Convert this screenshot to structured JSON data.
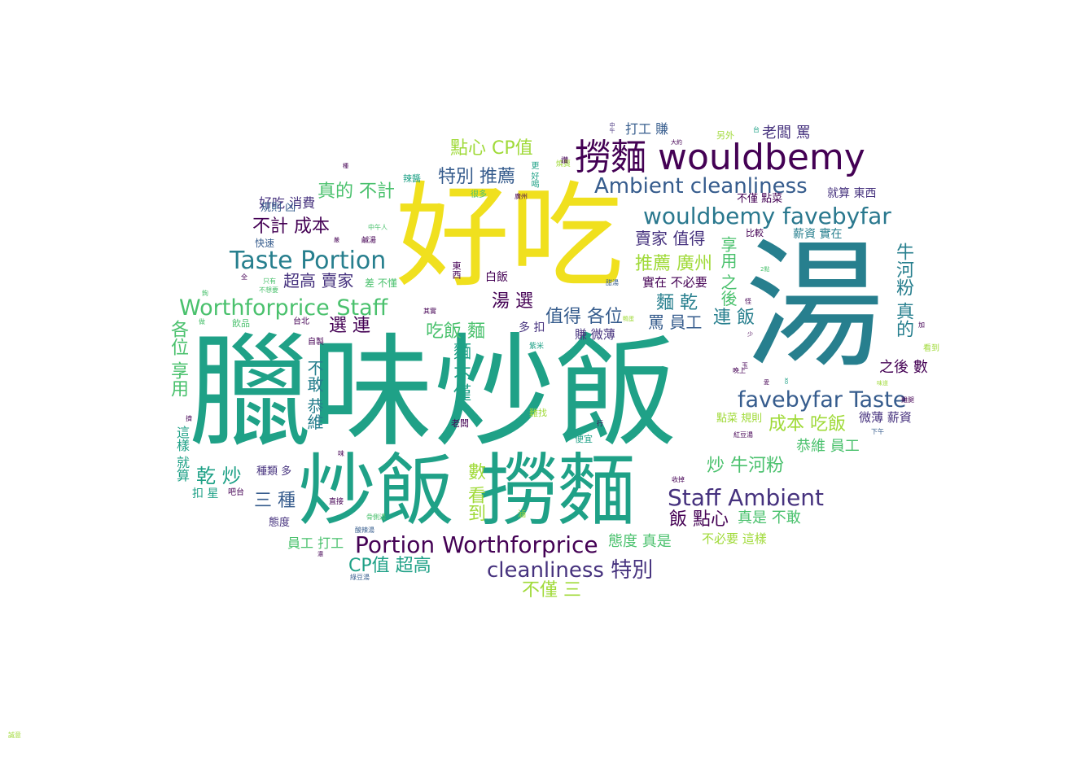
{
  "palette": {
    "yellow": "#f0e01e",
    "teal_green": "#1fa187",
    "teal": "#277f8e",
    "blue": "#365c8d",
    "navy": "#46327e",
    "purple": "#440154",
    "green": "#4ac16d",
    "lime": "#a0da39",
    "cyan": "#2a788e"
  },
  "words": [
    {
      "text": "臘味炒飯",
      "color": "#1fa187"
    },
    {
      "text": "湯",
      "color": "#277f8e"
    },
    {
      "text": "好吃",
      "color": "#f0e01e"
    },
    {
      "text": "炒飯 撈麵",
      "color": "#1fa187"
    },
    {
      "text": "撈麵 wouldbemy",
      "color": "#440154"
    },
    {
      "text": "wouldbemy favebyfar",
      "color": "#2a788e"
    },
    {
      "text": "Ambient cleanliness",
      "color": "#365c8d"
    },
    {
      "text": "Taste Portion",
      "color": "#277f8e"
    },
    {
      "text": "Worthforprice Staff",
      "color": "#4ac16d"
    },
    {
      "text": "favebyfar Taste",
      "color": "#365c8d"
    },
    {
      "text": "Staff Ambient",
      "color": "#46327e"
    },
    {
      "text": "Portion Worthforprice",
      "color": "#440154"
    },
    {
      "text": "cleanliness 特別",
      "color": "#46327e"
    },
    {
      "text": "點心 CP值",
      "color": "#a0da39"
    },
    {
      "text": "特別 推薦",
      "color": "#365c8d"
    },
    {
      "text": "真的 不計",
      "color": "#4ac16d"
    },
    {
      "text": "不計 成本",
      "color": "#440154"
    },
    {
      "text": "好吃 消費",
      "color": "#46327e"
    },
    {
      "text": "規則 凶",
      "color": "#365c8d"
    },
    {
      "text": "超高 賣家",
      "color": "#46327e"
    },
    {
      "text": "賣家 值得",
      "color": "#46327e"
    },
    {
      "text": "推薦 廣州",
      "color": "#a0da39"
    },
    {
      "text": "湯 選",
      "color": "#440154"
    },
    {
      "text": "選 連",
      "color": "#440154"
    },
    {
      "text": "麵 乾",
      "color": "#277f8e"
    },
    {
      "text": "值得 各位",
      "color": "#365c8d"
    },
    {
      "text": "罵 員工",
      "color": "#365c8d"
    },
    {
      "text": "連 飯",
      "color": "#277f8e"
    },
    {
      "text": "牛河粉 真的",
      "color": "#277f8e"
    },
    {
      "text": "享用 之後",
      "color": "#4ac16d"
    },
    {
      "text": "之後 數",
      "color": "#440154"
    },
    {
      "text": "吃飯 麵",
      "color": "#4ac16d"
    },
    {
      "text": "麵 不僅",
      "color": "#1fa187"
    },
    {
      "text": "各位 享用",
      "color": "#4ac16d"
    },
    {
      "text": "不敢 恭維",
      "color": "#277f8e"
    },
    {
      "text": "成本 吃飯",
      "color": "#a0da39"
    },
    {
      "text": "恭維 員工",
      "color": "#4ac16d"
    },
    {
      "text": "炒 牛河粉",
      "color": "#4ac16d"
    },
    {
      "text": "飯 點心",
      "color": "#440154"
    },
    {
      "text": "真是 不敢",
      "color": "#4ac16d"
    },
    {
      "text": "乾 炒",
      "color": "#1fa187"
    },
    {
      "text": "三 種",
      "color": "#365c8d"
    },
    {
      "text": "數 看到",
      "color": "#a0da39"
    },
    {
      "text": "態度 真是",
      "color": "#4ac16d"
    },
    {
      "text": "不必要 這樣",
      "color": "#a0da39"
    },
    {
      "text": "員工 打工",
      "color": "#4ac16d"
    },
    {
      "text": "CP值 超高",
      "color": "#1fa187"
    },
    {
      "text": "不僅 三",
      "color": "#a0da39"
    },
    {
      "text": "老闆 罵",
      "color": "#46327e"
    },
    {
      "text": "打工 賺",
      "color": "#365c8d"
    },
    {
      "text": "就算 東西",
      "color": "#46327e"
    },
    {
      "text": "薪資 實在",
      "color": "#277f8e"
    },
    {
      "text": "不僅 點菜",
      "color": "#440154"
    },
    {
      "text": "實在 不必要",
      "color": "#440154"
    },
    {
      "text": "賺 微薄",
      "color": "#46327e"
    },
    {
      "text": "微薄 薪資",
      "color": "#46327e"
    },
    {
      "text": "點菜 規則",
      "color": "#a0da39"
    },
    {
      "text": "這樣 就算",
      "color": "#1fa187"
    },
    {
      "text": "扣 星",
      "color": "#1fa187"
    },
    {
      "text": "種類 多",
      "color": "#46327e"
    },
    {
      "text": "態度",
      "color": "#46327e"
    },
    {
      "text": "多 扣",
      "color": "#46327e"
    },
    {
      "text": "快速",
      "color": "#365c8d"
    },
    {
      "text": "白飯",
      "color": "#440154"
    },
    {
      "text": "飲品",
      "color": "#4ac16d"
    },
    {
      "text": "台北",
      "color": "#440154"
    },
    {
      "text": "吧台",
      "color": "#440154"
    },
    {
      "text": "東西",
      "color": "#440154"
    },
    {
      "text": "直接",
      "color": "#440154"
    },
    {
      "text": "鹹湯",
      "color": "#440154"
    },
    {
      "text": "辣醬",
      "color": "#1fa187"
    },
    {
      "text": "很多",
      "color": "#4ac16d"
    },
    {
      "text": "更 好喝",
      "color": "#1fa187"
    },
    {
      "text": "廣州",
      "color": "#440154"
    },
    {
      "text": "另外",
      "color": "#a0da39"
    },
    {
      "text": "比較",
      "color": "#440154"
    },
    {
      "text": "難找",
      "color": "#a0da39"
    },
    {
      "text": "便宜",
      "color": "#1fa187"
    },
    {
      "text": "老闆",
      "color": "#440154"
    },
    {
      "text": "紫米",
      "color": "#1fa187"
    },
    {
      "text": "自製",
      "color": "#440154"
    },
    {
      "text": "看到",
      "color": "#a0da39"
    },
    {
      "text": "晚上",
      "color": "#440154"
    },
    {
      "text": "雞腿",
      "color": "#440154"
    },
    {
      "text": "紅豆湯",
      "color": "#440154"
    },
    {
      "text": "下午",
      "color": "#365c8d"
    },
    {
      "text": "中午人",
      "color": "#4ac16d"
    },
    {
      "text": "只有",
      "color": "#4ac16d"
    },
    {
      "text": "不想要",
      "color": "#4ac16d"
    },
    {
      "text": "綠豆湯",
      "color": "#365c8d"
    },
    {
      "text": "酸辣湯",
      "color": "#365c8d"
    },
    {
      "text": "骨側湯",
      "color": "#4ac16d"
    },
    {
      "text": "甜湯",
      "color": "#365c8d"
    },
    {
      "text": "收掉",
      "color": "#440154"
    },
    {
      "text": "行",
      "color": "#440154"
    },
    {
      "text": "味",
      "color": "#440154"
    },
    {
      "text": "其實",
      "color": "#440154"
    },
    {
      "text": "差 不懂",
      "color": "#4ac16d"
    },
    {
      "text": "大約",
      "color": "#440154"
    },
    {
      "text": "台",
      "color": "#1fa187"
    },
    {
      "text": "中午",
      "color": "#46327e"
    },
    {
      "text": "全",
      "color": "#440154"
    },
    {
      "text": "鉤",
      "color": "#4ac16d"
    },
    {
      "text": "做",
      "color": "#4ac16d"
    },
    {
      "text": "擠",
      "color": "#440154"
    },
    {
      "text": "加",
      "color": "#440154"
    },
    {
      "text": "怪",
      "color": "#440154"
    },
    {
      "text": "少",
      "color": "#440154"
    },
    {
      "text": "玉",
      "color": "#440154"
    },
    {
      "text": "愛",
      "color": "#440154"
    },
    {
      "text": "2點",
      "color": "#4ac16d"
    },
    {
      "text": "xo",
      "color": "#1fa187"
    },
    {
      "text": "種",
      "color": "#440154"
    },
    {
      "text": "嚴",
      "color": "#440154"
    },
    {
      "text": "濃",
      "color": "#440154"
    },
    {
      "text": "味道",
      "color": "#a0da39"
    },
    {
      "text": "燒賣",
      "color": "#a0da39"
    },
    {
      "text": "鴨蛋",
      "color": "#a0da39"
    },
    {
      "text": "滷",
      "color": "#a0da39"
    },
    {
      "text": "讚",
      "color": "#440154"
    },
    {
      "text": "誠意",
      "color": "#a0da39"
    }
  ]
}
